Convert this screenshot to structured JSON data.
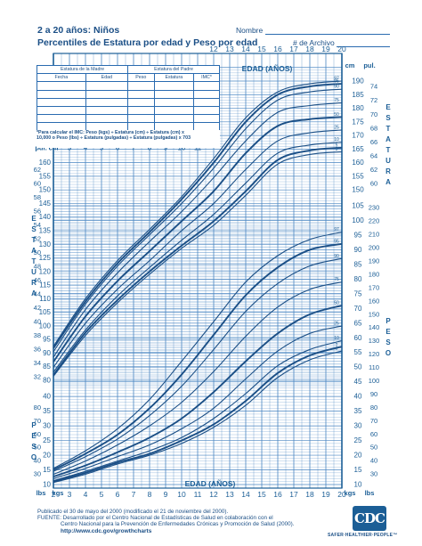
{
  "header": {
    "title_line1": "2 a 20 años: Niños",
    "title_line2": "Percentiles de Estatura por edad y Peso por edad",
    "name_label": "Nombre",
    "record_label": "# de Archivo"
  },
  "info_table": {
    "mother_height": "Estatura de la Madre",
    "father_height": "Estatura del Padre",
    "columns": [
      "Fecha",
      "Edad",
      "Peso",
      "Estatura",
      "IMC*"
    ]
  },
  "bmi_note": {
    "line1": "*Para calcular el IMC: Peso (kgs) ÷ Estatura (cm) ÷ Estatura (cm) x",
    "line2": "10,000 o Peso (lbs) ÷ Estatura (pulgadas) ÷ Estatura (pulgadas) x 703"
  },
  "side_labels": {
    "estatura": "ESTATURA",
    "peso": "PESO"
  },
  "footer": {
    "line1": "Publicado el 30 de mayo del 2000 (modificado el 21 de noviembre del 2000).",
    "line2": "FUENTE: Desarrollado por el Centro Nacional de Estadísticas de Salud en colaboración con el",
    "line3": "Centro Nacional para la Prevención de Enfermedades Crónicas y Promoción de Salud (2000).",
    "url": "http://www.cdc.gov/growthcharts",
    "logo_text": "CDC",
    "slogan": "SAFER·HEALTHIER·PEOPLE™"
  },
  "colors": {
    "ink": "#1b5e96",
    "grid": "#4a86c2",
    "line": "#1b4f86"
  },
  "chart_data": {
    "type": "line",
    "xlabel": "EDAD (AÑOS)",
    "x": [
      2,
      4,
      6,
      8,
      10,
      12,
      14,
      16,
      18,
      20
    ],
    "x_range": [
      2,
      20
    ],
    "stature": {
      "unit_left": "cm",
      "unit_right": "pul.",
      "y_range": [
        77,
        195
      ],
      "series": [
        {
          "name": "97",
          "values": [
            92.5,
            110,
            124,
            135.5,
            147.5,
            161.5,
            176.5,
            186,
            189,
            190
          ]
        },
        {
          "name": "95",
          "values": [
            91.8,
            109,
            123,
            134.5,
            146.5,
            160,
            175,
            185,
            188,
            189
          ]
        },
        {
          "name": "90",
          "values": [
            90.5,
            108,
            122,
            133.5,
            145,
            158,
            172.5,
            183,
            186,
            187
          ]
        },
        {
          "name": "75",
          "values": [
            88.5,
            106,
            119.5,
            131,
            142,
            154.5,
            168,
            178.5,
            181,
            182
          ]
        },
        {
          "name": "50",
          "values": [
            86.8,
            103.5,
            116.5,
            127.5,
            138.5,
            149.5,
            163.5,
            173.5,
            176,
            176.8
          ]
        },
        {
          "name": "25",
          "values": [
            84.8,
            101,
            113.5,
            124,
            135,
            145,
            157.5,
            168,
            171,
            172
          ]
        },
        {
          "name": "10",
          "values": [
            83,
            98.5,
            111,
            121.5,
            131.5,
            141,
            152.5,
            163.5,
            166.5,
            167.5
          ]
        },
        {
          "name": "5",
          "values": [
            82,
            97.5,
            109.5,
            120,
            129.5,
            138.5,
            149.5,
            161,
            164.5,
            165.5
          ]
        },
        {
          "name": "3",
          "values": [
            81.5,
            96.5,
            108.5,
            119,
            128.5,
            137,
            148,
            159.5,
            163,
            164
          ]
        }
      ],
      "ticks_cm": [
        80,
        85,
        90,
        95,
        100,
        105,
        110,
        115,
        120,
        125,
        130,
        135,
        140,
        145,
        150,
        155,
        160,
        165,
        170,
        175,
        180,
        185,
        190
      ],
      "ticks_in": [
        32,
        34,
        36,
        38,
        40,
        42,
        44,
        46,
        48,
        50,
        52,
        54,
        56,
        58,
        60,
        62,
        64,
        66,
        68,
        70,
        72,
        74
      ]
    },
    "weight": {
      "unit_left": "kgs",
      "unit_right": "lbs",
      "y_range": [
        10,
        105
      ],
      "series": [
        {
          "name": "97",
          "values": [
            15.5,
            21.5,
            29,
            39,
            52,
            65.5,
            79,
            88,
            93.5,
            96
          ]
        },
        {
          "name": "95",
          "values": [
            15,
            20.5,
            27,
            36,
            47.5,
            61,
            74.5,
            84,
            90,
            92
          ]
        },
        {
          "name": "90",
          "values": [
            14.5,
            19.5,
            25.5,
            33.5,
            43.5,
            56,
            69,
            78.5,
            84.5,
            87
          ]
        },
        {
          "name": "75",
          "values": [
            13.5,
            18,
            23.5,
            30,
            38,
            48.5,
            60.5,
            70.5,
            76.5,
            79
          ]
        },
        {
          "name": "50",
          "values": [
            12.7,
            16.5,
            21,
            26,
            32.5,
            41.5,
            52,
            61.5,
            68,
            71
          ]
        },
        {
          "name": "25",
          "values": [
            12,
            15.5,
            19.5,
            23.5,
            29,
            36,
            46,
            55.5,
            61.5,
            64
          ]
        },
        {
          "name": "10",
          "values": [
            11.3,
            14.5,
            18,
            21.5,
            26,
            32.5,
            41,
            50.5,
            56,
            59
          ]
        },
        {
          "name": "5",
          "values": [
            11,
            14,
            17.5,
            20.5,
            25,
            30.5,
            38.5,
            48,
            54,
            57
          ]
        },
        {
          "name": "3",
          "values": [
            10.7,
            13.5,
            17,
            20,
            24,
            29.5,
            37,
            46.5,
            52.5,
            55.5
          ]
        }
      ],
      "ticks_kg": [
        10,
        15,
        20,
        25,
        30,
        35,
        40,
        45,
        50,
        55,
        60,
        65,
        70,
        75,
        80,
        85,
        90,
        95,
        100,
        105
      ],
      "ticks_lb": [
        30,
        40,
        50,
        60,
        70,
        80,
        90,
        100,
        110,
        120,
        130,
        140,
        150,
        160,
        170,
        180,
        190,
        200,
        210,
        220,
        230
      ]
    }
  }
}
